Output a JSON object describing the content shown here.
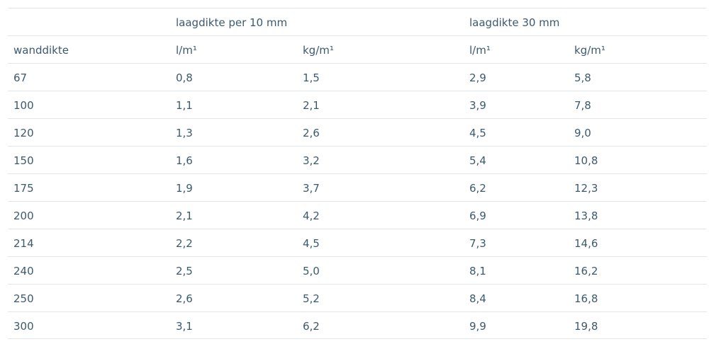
{
  "table": {
    "group_header": {
      "col1": "laagdikte per 10 mm",
      "col3": "laagdikte 30 mm"
    },
    "columns": [
      "wanddikte",
      "l/m¹",
      "kg/m¹",
      "l/m¹",
      "kg/m¹"
    ],
    "rows": [
      [
        "67",
        "0,8",
        "1,5",
        "2,9",
        "5,8"
      ],
      [
        "100",
        "1,1",
        "2,1",
        "3,9",
        "7,8"
      ],
      [
        "120",
        "1,3",
        "2,6",
        "4,5",
        "9,0"
      ],
      [
        "150",
        "1,6",
        "3,2",
        "5,4",
        "10,8"
      ],
      [
        "175",
        "1,9",
        "3,7",
        "6,2",
        "12,3"
      ],
      [
        "200",
        "2,1",
        "4,2",
        "6,9",
        "13,8"
      ],
      [
        "214",
        "2,2",
        "4,5",
        "7,3",
        "14,6"
      ],
      [
        "240",
        "2,5",
        "5,0",
        "8,1",
        "16,2"
      ],
      [
        "250",
        "2,6",
        "5,2",
        "8,4",
        "16,8"
      ],
      [
        "300",
        "3,1",
        "6,2",
        "9,9",
        "19,8"
      ]
    ]
  }
}
